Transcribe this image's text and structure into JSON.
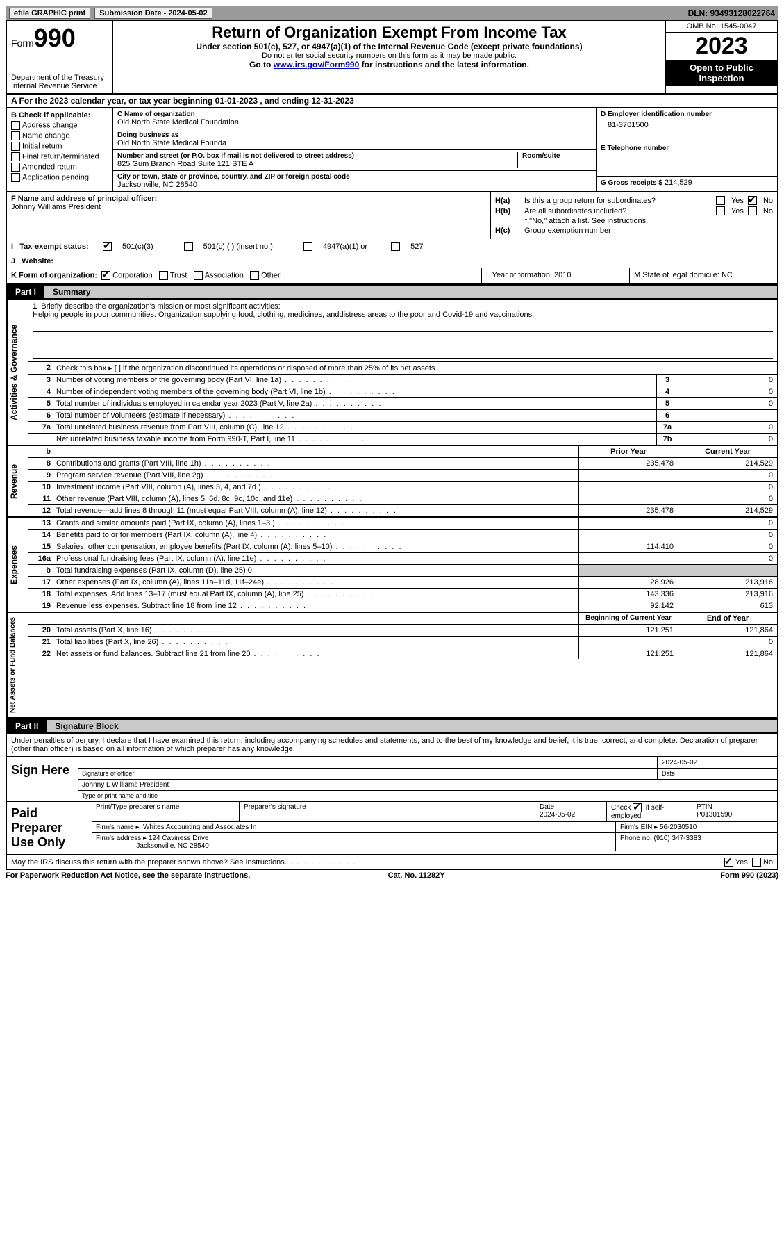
{
  "topbar": {
    "efile": "efile GRAPHIC print",
    "submission_label": "Submission Date - 2024-05-02",
    "dln_label": "DLN: 93493128022764"
  },
  "header": {
    "form_word": "Form",
    "form_num": "990",
    "dept": "Department of the Treasury",
    "irs": "Internal Revenue Service",
    "title": "Return of Organization Exempt From Income Tax",
    "sub": "Under section 501(c), 527, or 4947(a)(1) of the Internal Revenue Code (except private foundations)",
    "ssn_note": "Do not enter social security numbers on this form as it may be made public.",
    "goto_pre": "Go to ",
    "goto_link": "www.irs.gov/Form990",
    "goto_post": " for instructions and the latest information.",
    "omb": "OMB No. 1545-0047",
    "year": "2023",
    "open": "Open to Public Inspection"
  },
  "lineA": {
    "text": "A   For the 2023 calendar year, or tax year beginning 01-01-2023    , and ending 12-31-2023"
  },
  "B": {
    "header": "B Check if applicable:",
    "opts": [
      "Address change",
      "Name change",
      "Initial return",
      "Final return/terminated",
      "Amended return",
      "Application pending"
    ]
  },
  "C": {
    "name_label": "C Name of organization",
    "name": "Old North State Medical Foundation",
    "dba_label": "Doing business as",
    "dba": "Old North State Medical Founda",
    "addr_label": "Number and street (or P.O. box if mail is not delivered to street address)",
    "addr": "825 Gum Branch Road Suite 121 STE A",
    "room_label": "Room/suite",
    "city_label": "City or town, state or province, country, and ZIP or foreign postal code",
    "city": "Jacksonville, NC  28540"
  },
  "D": {
    "label": "D Employer identification number",
    "value": "81-3701500"
  },
  "E": {
    "label": "E Telephone number",
    "value": ""
  },
  "G": {
    "label": "G Gross receipts $",
    "value": "214,529"
  },
  "F": {
    "label": "F  Name and address of principal officer:",
    "value": "Johnny Williams President"
  },
  "H": {
    "a_label": "H(a)",
    "a_text": "Is this a group return for subordinates?",
    "a_yes": "Yes",
    "a_no": "No",
    "b_label": "H(b)",
    "b_text": "Are all subordinates included?",
    "b_yes": "Yes",
    "b_no": "No",
    "b_note": "If \"No,\" attach a list. See instructions.",
    "c_label": "H(c)",
    "c_text": "Group exemption number"
  },
  "I": {
    "label": "Tax-exempt status:",
    "o1": "501(c)(3)",
    "o2": "501(c) (  ) (insert no.)",
    "o3": "4947(a)(1) or",
    "o4": "527"
  },
  "J": {
    "label": "Website:",
    "value": ""
  },
  "K": {
    "label": "K Form of organization:",
    "o1": "Corporation",
    "o2": "Trust",
    "o3": "Association",
    "o4": "Other"
  },
  "L": {
    "label": "L Year of formation: 2010"
  },
  "M": {
    "label": "M State of legal domicile: NC"
  },
  "part1": {
    "tag": "Part I",
    "title": "Summary"
  },
  "sections": {
    "ag": "Activities & Governance",
    "rev": "Revenue",
    "exp": "Expenses",
    "na": "Net Assets or Fund Balances"
  },
  "mission": {
    "num": "1",
    "label": "Briefly describe the organization's mission or most significant activities:",
    "text": "Helping people in poor communities. Organization supplying food, clothing, medicines, anddistress areas to the poor and Covid-19 and vaccinations."
  },
  "lines_ag": [
    {
      "n": "2",
      "t": "Check this box ▸ [ ] if the organization discontinued its operations or disposed of more than 25% of its net assets.",
      "box": "",
      "v": ""
    },
    {
      "n": "3",
      "t": "Number of voting members of the governing body (Part VI, line 1a)",
      "box": "3",
      "v": "0"
    },
    {
      "n": "4",
      "t": "Number of independent voting members of the governing body (Part VI, line 1b)",
      "box": "4",
      "v": "0"
    },
    {
      "n": "5",
      "t": "Total number of individuals employed in calendar year 2023 (Part V, line 2a)",
      "box": "5",
      "v": "0"
    },
    {
      "n": "6",
      "t": "Total number of volunteers (estimate if necessary)",
      "box": "6",
      "v": ""
    },
    {
      "n": "7a",
      "t": "Total unrelated business revenue from Part VIII, column (C), line 12",
      "box": "7a",
      "v": "0"
    },
    {
      "n": "",
      "t": "Net unrelated business taxable income from Form 990-T, Part I, line 11",
      "box": "7b",
      "v": "0"
    }
  ],
  "rev_hdr": {
    "b": "b",
    "py": "Prior Year",
    "cy": "Current Year"
  },
  "lines_rev": [
    {
      "n": "8",
      "t": "Contributions and grants (Part VIII, line 1h)",
      "py": "235,478",
      "cy": "214,529"
    },
    {
      "n": "9",
      "t": "Program service revenue (Part VIII, line 2g)",
      "py": "",
      "cy": "0"
    },
    {
      "n": "10",
      "t": "Investment income (Part VIII, column (A), lines 3, 4, and 7d )",
      "py": "",
      "cy": "0"
    },
    {
      "n": "11",
      "t": "Other revenue (Part VIII, column (A), lines 5, 6d, 8c, 9c, 10c, and 11e)",
      "py": "",
      "cy": "0"
    },
    {
      "n": "12",
      "t": "Total revenue—add lines 8 through 11 (must equal Part VIII, column (A), line 12)",
      "py": "235,478",
      "cy": "214,529"
    }
  ],
  "lines_exp": [
    {
      "n": "13",
      "t": "Grants and similar amounts paid (Part IX, column (A), lines 1–3 )",
      "py": "",
      "cy": "0"
    },
    {
      "n": "14",
      "t": "Benefits paid to or for members (Part IX, column (A), line 4)",
      "py": "",
      "cy": "0"
    },
    {
      "n": "15",
      "t": "Salaries, other compensation, employee benefits (Part IX, column (A), lines 5–10)",
      "py": "114,410",
      "cy": "0"
    },
    {
      "n": "16a",
      "t": "Professional fundraising fees (Part IX, column (A), line 11e)",
      "py": "",
      "cy": "0"
    },
    {
      "n": "b",
      "t": "Total fundraising expenses (Part IX, column (D), line 25) 0",
      "py": "shade",
      "cy": "shade"
    },
    {
      "n": "17",
      "t": "Other expenses (Part IX, column (A), lines 11a–11d, 11f–24e)",
      "py": "28,926",
      "cy": "213,916"
    },
    {
      "n": "18",
      "t": "Total expenses. Add lines 13–17 (must equal Part IX, column (A), line 25)",
      "py": "143,336",
      "cy": "213,916"
    },
    {
      "n": "19",
      "t": "Revenue less expenses. Subtract line 18 from line 12",
      "py": "92,142",
      "cy": "613"
    }
  ],
  "na_hdr": {
    "py": "Beginning of Current Year",
    "cy": "End of Year"
  },
  "lines_na": [
    {
      "n": "20",
      "t": "Total assets (Part X, line 16)",
      "py": "121,251",
      "cy": "121,864"
    },
    {
      "n": "21",
      "t": "Total liabilities (Part X, line 26)",
      "py": "",
      "cy": "0"
    },
    {
      "n": "22",
      "t": "Net assets or fund balances. Subtract line 21 from line 20",
      "py": "121,251",
      "cy": "121,864"
    }
  ],
  "part2": {
    "tag": "Part II",
    "title": "Signature Block"
  },
  "decl": "Under penalties of perjury, I declare that I have examined this return, including accompanying schedules and statements, and to the best of my knowledge and belief, it is true, correct, and complete. Declaration of preparer (other than officer) is based on all information of which preparer has any knowledge.",
  "sign": {
    "left": "Sign Here",
    "date": "2024-05-02",
    "sig_label": "Signature of officer",
    "date_label": "Date",
    "officer": "Johnny L Williams  President",
    "type_label": "Type or print name and title"
  },
  "paid": {
    "left": "Paid Preparer Use Only",
    "print_label": "Print/Type preparer's name",
    "sig_label": "Preparer's signature",
    "date_label": "Date",
    "date": "2024-05-02",
    "check_label": "Check",
    "check_text": "if self-employed",
    "ptin_label": "PTIN",
    "ptin": "P01301590",
    "firm_name_label": "Firm's name ▸",
    "firm_name": "Whites Accounting and Associates In",
    "firm_ein_label": "Firm's EIN ▸",
    "firm_ein": "56-2030510",
    "firm_addr_label": "Firm's address ▸",
    "firm_addr": "124 Caviness Drive",
    "firm_city": "Jacksonville, NC  28540",
    "phone_label": "Phone no.",
    "phone": "(910) 347-3383"
  },
  "discuss": {
    "text": "May the IRS discuss this return with the preparer shown above? See Instructions.",
    "yes": "Yes",
    "no": "No"
  },
  "footer": {
    "l": "For Paperwork Reduction Act Notice, see the separate instructions.",
    "m": "Cat. No. 11282Y",
    "r": "Form 990 (2023)"
  }
}
